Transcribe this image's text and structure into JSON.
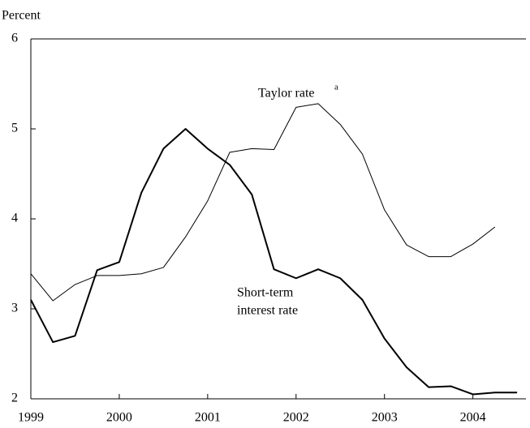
{
  "chart_data": {
    "type": "line",
    "y_label": "Percent",
    "x": [
      1999,
      1999.25,
      1999.5,
      1999.75,
      2000,
      2000.25,
      2000.5,
      2000.75,
      2001,
      2001.25,
      2001.5,
      2001.75,
      2002,
      2002.25,
      2002.5,
      2002.75,
      2003,
      2003.25,
      2003.5,
      2003.75,
      2004,
      2004.25,
      2004.5
    ],
    "series": [
      {
        "name": "Short-term interest rate",
        "color": "#000000",
        "width": 2,
        "values": [
          3.1,
          2.63,
          2.7,
          3.43,
          3.52,
          4.29,
          4.78,
          5.0,
          4.78,
          4.6,
          4.27,
          3.44,
          3.34,
          3.44,
          3.34,
          3.1,
          2.67,
          2.35,
          2.13,
          2.14,
          2.05,
          2.07,
          2.07
        ]
      },
      {
        "name": "Taylor rate",
        "color": "#000000",
        "width": 1,
        "values": [
          3.39,
          3.09,
          3.27,
          3.37,
          3.37,
          3.39,
          3.46,
          3.8,
          4.2,
          4.74,
          4.78,
          4.77,
          5.24,
          5.28,
          5.05,
          4.72,
          4.1,
          3.71,
          3.58,
          3.58,
          3.72,
          3.91,
          null
        ]
      }
    ],
    "annotations": [
      {
        "text": "Taylor rate",
        "superscript": "a"
      },
      {
        "text": "Short-term",
        "text2": "interest rate"
      }
    ],
    "xlim": [
      1999,
      2004.6
    ],
    "xticks": [
      1999,
      2000,
      2001,
      2002,
      2003,
      2004
    ],
    "ylim": [
      2,
      6
    ],
    "yticks": [
      2,
      3,
      4,
      5,
      6
    ]
  }
}
